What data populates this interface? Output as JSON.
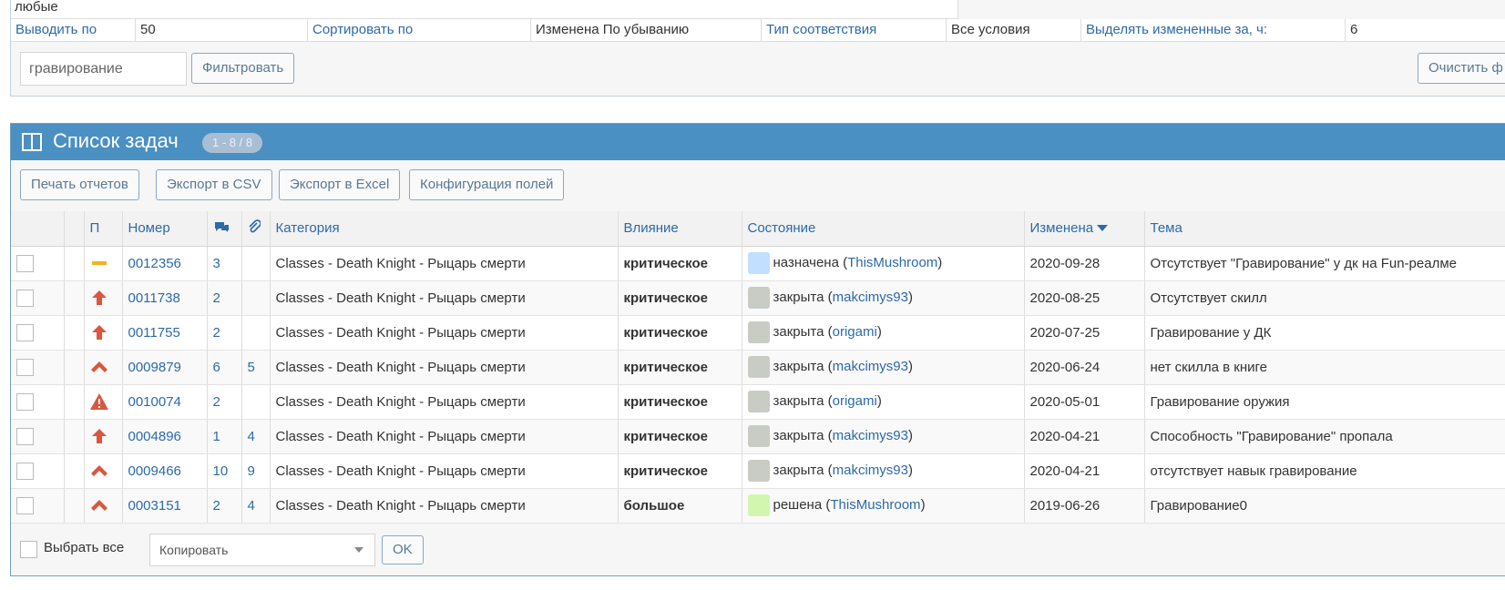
{
  "filter": {
    "match_any": "любые",
    "settings": [
      {
        "label": "Выводить по",
        "value": "50"
      },
      {
        "label": "Сортировать по",
        "value": "Изменена По убыванию"
      },
      {
        "label": "Тип соответствия",
        "value": "Все условия"
      },
      {
        "label": "Выделять измененные за, ч:",
        "value": "6"
      }
    ],
    "search": "гравирование",
    "filter_button": "Фильтровать",
    "clear_button": "Очистить ф"
  },
  "tasks": {
    "title": "Список задач",
    "count": "1 - 8 / 8",
    "buttons": [
      "Печать отчетов",
      "Экспорт в CSV",
      "Экспорт в Excel",
      "Конфигурация полей"
    ],
    "columns": {
      "priority": "П",
      "id": "Номер",
      "category": "Категория",
      "severity": "Влияние",
      "status": "Состояние",
      "updated": "Изменена",
      "summary": "Тема"
    },
    "rows": [
      {
        "priority": "normal",
        "id": "0012356",
        "notes": 3,
        "files": null,
        "category": "Classes - Death Knight - Рыцарь смерти",
        "severity": "критическое",
        "status": "назначена",
        "status_color": "#c2dfff",
        "handler": "ThisMushroom",
        "updated": "2020-09-28",
        "summary": "Отсутствует \"Гравирование\" у дк на Fun-реалме"
      },
      {
        "priority": "high",
        "id": "0011738",
        "notes": 2,
        "files": null,
        "category": "Classes - Death Knight - Рыцарь смерти",
        "severity": "критическое",
        "status": "закрыта",
        "status_color": "#c9ccc4",
        "handler": "makcimys93",
        "updated": "2020-08-25",
        "summary": "Отсутствует скилл"
      },
      {
        "priority": "high",
        "id": "0011755",
        "notes": 2,
        "files": null,
        "category": "Classes - Death Knight - Рыцарь смерти",
        "severity": "критическое",
        "status": "закрыта",
        "status_color": "#c9ccc4",
        "handler": "origami",
        "updated": "2020-07-25",
        "summary": "Гравирование у ДК"
      },
      {
        "priority": "urgent",
        "id": "0009879",
        "notes": 6,
        "files": 5,
        "category": "Classes - Death Knight - Рыцарь смерти",
        "severity": "критическое",
        "status": "закрыта",
        "status_color": "#c9ccc4",
        "handler": "makcimys93",
        "updated": "2020-06-24",
        "summary": "нет скилла в книге"
      },
      {
        "priority": "immediate",
        "id": "0010074",
        "notes": 2,
        "files": null,
        "category": "Classes - Death Knight - Рыцарь смерти",
        "severity": "критическое",
        "status": "закрыта",
        "status_color": "#c9ccc4",
        "handler": "origami",
        "updated": "2020-05-01",
        "summary": "Гравирование оружия"
      },
      {
        "priority": "high",
        "id": "0004896",
        "notes": 1,
        "files": 4,
        "category": "Classes - Death Knight - Рыцарь смерти",
        "severity": "критическое",
        "status": "закрыта",
        "status_color": "#c9ccc4",
        "handler": "makcimys93",
        "updated": "2020-04-21",
        "summary": "Способность \"Гравирование\" пропала"
      },
      {
        "priority": "urgent",
        "id": "0009466",
        "notes": 10,
        "files": 9,
        "category": "Classes - Death Knight - Рыцарь смерти",
        "severity": "критическое",
        "status": "закрыта",
        "status_color": "#c9ccc4",
        "handler": "makcimys93",
        "updated": "2020-04-21",
        "summary": "отсутствует навык гравирование"
      },
      {
        "priority": "urgent",
        "id": "0003151",
        "notes": 2,
        "files": 4,
        "category": "Classes - Death Knight - Рыцарь смерти",
        "severity": "большое",
        "status": "решена",
        "status_color": "#d2f5b0",
        "handler": "ThisMushroom",
        "updated": "2019-06-26",
        "summary": "Гравирование0"
      }
    ],
    "select_all": "Выбрать все",
    "action": "Копировать",
    "ok_button": "OK"
  }
}
